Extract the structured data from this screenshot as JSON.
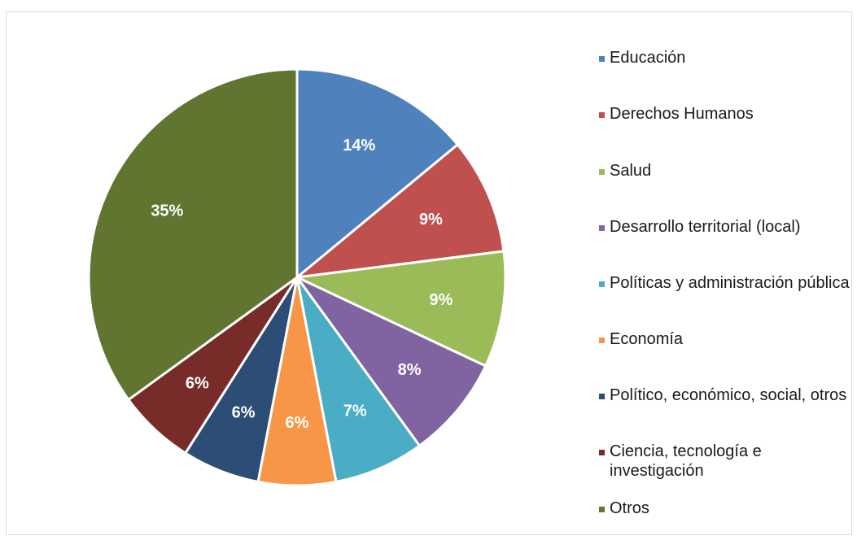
{
  "chart_data": {
    "type": "pie",
    "title": "",
    "slices": [
      {
        "name": "Educación",
        "value": 14,
        "label": "14%",
        "color": "#4f81bd"
      },
      {
        "name": "Derechos Humanos",
        "value": 9,
        "label": "9%",
        "color": "#c0504d"
      },
      {
        "name": "Salud",
        "value": 9,
        "label": "9%",
        "color": "#9bbb59"
      },
      {
        "name": "Desarrollo territorial (local)",
        "value": 8,
        "label": "8%",
        "color": "#8064a2"
      },
      {
        "name": "Políticas y administración pública",
        "value": 7,
        "label": "7%",
        "color": "#4bacc6"
      },
      {
        "name": "Economía",
        "value": 6,
        "label": "6%",
        "color": "#f79646"
      },
      {
        "name": "Político, económico, social, otros",
        "value": 6,
        "label": "6%",
        "color": "#2c4d75"
      },
      {
        "name": "Ciencia, tecnología e investigación",
        "value": 6,
        "label": "6%",
        "color": "#772c2a"
      },
      {
        "name": "Otros",
        "value": 35,
        "label": "35%",
        "color": "#5f7530"
      }
    ],
    "legend_position": "right"
  }
}
